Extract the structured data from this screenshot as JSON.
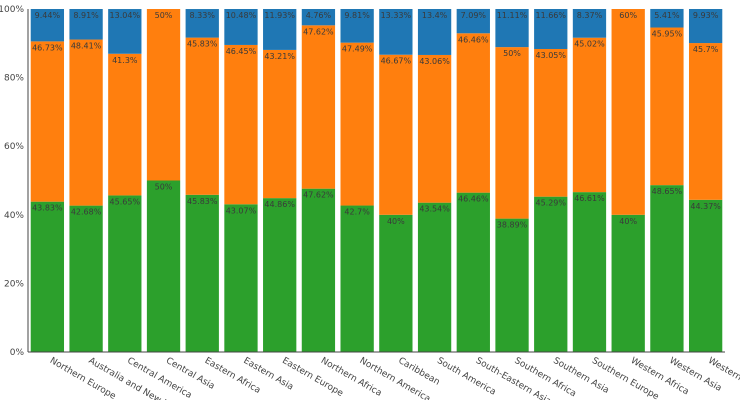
{
  "chart_data": {
    "type": "bar",
    "stacked": true,
    "categories": [
      "Northern Europe",
      "Australia and New Zealand",
      "Central America",
      "Central Asia",
      "Eastern Africa",
      "Eastern Asia",
      "Eastern Europe",
      "Northern Africa",
      "Northern America",
      "Caribbean",
      "South America",
      "South-Eastern Asia",
      "Southern Africa",
      "Southern Asia",
      "Southern Europe",
      "Western Africa",
      "Western Asia",
      "Western Europe"
    ],
    "display_categories": [
      "Northern Europe",
      "Australia and New Ze",
      "Central America",
      "Central Asia",
      "Eastern Africa",
      "Eastern Asia",
      "Eastern Europe",
      "Northern Africa",
      "Northern America",
      "Caribbean",
      "South America",
      "South-Eastern Asia",
      "Southern Africa",
      "Southern Asia",
      "Southern Europe",
      "Western Africa",
      "Western Asia",
      "Western Eu"
    ],
    "series": [
      {
        "color": "#2ca02c",
        "values": [
          43.83,
          42.68,
          45.65,
          50,
          45.83,
          43.07,
          44.86,
          47.62,
          42.7,
          40,
          43.54,
          46.46,
          38.89,
          45.29,
          46.61,
          40,
          48.65,
          44.37
        ],
        "labels": [
          "43.83%",
          "42.68%",
          "45.65%",
          "50%",
          "45.83%",
          "43.07%",
          "44.86%",
          "47.62%",
          "42.7%",
          "40%",
          "43.54%",
          "46.46%",
          "38.89%",
          "45.29%",
          "46.61%",
          "40%",
          "48.65%",
          "44.37%"
        ]
      },
      {
        "color": "#ff7f0e",
        "values": [
          46.73,
          48.41,
          41.3,
          50,
          45.83,
          46.45,
          43.21,
          47.62,
          47.49,
          46.67,
          43.06,
          46.46,
          50,
          43.05,
          45.02,
          60,
          45.95,
          45.7
        ],
        "labels": [
          "46.73%",
          "48.41%",
          "41.3%",
          "50%",
          "45.83%",
          "46.45%",
          "43.21%",
          "47.62%",
          "47.49%",
          "46.67%",
          "43.06%",
          "46.46%",
          "50%",
          "43.05%",
          "45.02%",
          "60%",
          "45.95%",
          "45.7%"
        ]
      },
      {
        "color": "#1f77b4",
        "values": [
          9.44,
          8.91,
          13.04,
          0,
          8.33,
          10.48,
          11.93,
          4.76,
          9.81,
          13.33,
          13.4,
          7.09,
          11.11,
          11.66,
          8.37,
          0,
          5.41,
          9.93
        ],
        "labels": [
          "9.44%",
          "8.91%",
          "13.04%",
          "",
          "8.33%",
          "10.48%",
          "11.93%",
          "4.76%",
          "9.81%",
          "13.33%",
          "13.4%",
          "7.09%",
          "11.11%",
          "11.66%",
          "8.37%",
          "",
          "5.41%",
          "9.93%"
        ]
      }
    ],
    "y_ticks": [
      "0%",
      "20%",
      "40%",
      "60%",
      "80%",
      "100%"
    ],
    "ylim": [
      0,
      100
    ],
    "grid": false,
    "legend": "none",
    "xlabel": "",
    "ylabel": "",
    "title": ""
  }
}
